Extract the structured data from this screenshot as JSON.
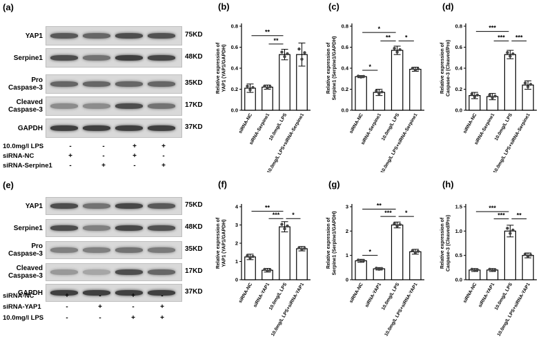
{
  "blots": [
    {
      "letter": "(a)",
      "rows": [
        "YAP1",
        "Serpine1",
        "Pro\nCaspase-3",
        "Cleaved\nCaspase-3",
        "GAPDH"
      ],
      "kd": [
        "75KD",
        "48KD",
        "35KD",
        "17KD",
        "37KD"
      ],
      "conditions": [
        {
          "label": "10.0mg/l LPS",
          "signs": [
            "-",
            "-",
            "+",
            "+"
          ]
        },
        {
          "label": "siRNA-NC",
          "signs": [
            "+",
            "-",
            "+",
            "-"
          ]
        },
        {
          "label": "siRNA-Serpine1",
          "signs": [
            "-",
            "+",
            "-",
            "+"
          ]
        }
      ]
    },
    {
      "letter": "(e)",
      "rows": [
        "YAP1",
        "Serpine1",
        "Pro\nCaspase-3",
        "Cleaved\nCaspase-3",
        "GAPDH"
      ],
      "kd": [
        "75KD",
        "48KD",
        "35KD",
        "17KD",
        "37KD"
      ],
      "conditions": [
        {
          "label": "siRNA-NC",
          "signs": [
            "+",
            "-",
            "+",
            "-"
          ]
        },
        {
          "label": "siRNA-YAP1",
          "signs": [
            "-",
            "+",
            "-",
            "+"
          ]
        },
        {
          "label": "10.0mg/l LPS",
          "signs": [
            "-",
            "-",
            "+",
            "+"
          ]
        }
      ]
    }
  ],
  "chart_data": [
    {
      "id": "b",
      "letter": "(b)",
      "type": "bar",
      "ylabel": "Relative expression of\nYAP1 (YAP1/GAPDH)",
      "categories": [
        "siRNA-NC",
        "siRNA-Serpine1",
        "10.0mg/L LPS",
        "10.0mg/L LPS+siRNA-Serpine1"
      ],
      "values": [
        0.21,
        0.22,
        0.53,
        0.53
      ],
      "errors": [
        0.04,
        0.02,
        0.05,
        0.11
      ],
      "ylim": [
        0,
        0.8
      ],
      "yticks": [
        0.0,
        0.2,
        0.4,
        0.6,
        0.8
      ],
      "tick_decimals": 1,
      "sig": [
        {
          "from": 0,
          "to": 2,
          "label": "**",
          "y": 0.71
        },
        {
          "from": 1,
          "to": 2,
          "label": "**",
          "y": 0.63
        }
      ]
    },
    {
      "id": "c",
      "letter": "(c)",
      "type": "bar",
      "ylabel": "Relative expression of\nSerpine1 (Serpine1/GAPDH)",
      "categories": [
        "siRNA-NC",
        "siRNA-Serpine1",
        "10.0mg/L LPS",
        "10.0mg/L LPS+siRNA-Serpine1"
      ],
      "values": [
        0.32,
        0.17,
        0.57,
        0.39
      ],
      "errors": [
        0.01,
        0.03,
        0.04,
        0.02
      ],
      "ylim": [
        0,
        0.8
      ],
      "yticks": [
        0.0,
        0.2,
        0.4,
        0.6,
        0.8
      ],
      "tick_decimals": 1,
      "sig": [
        {
          "from": 0,
          "to": 2,
          "label": "*",
          "y": 0.74
        },
        {
          "from": 0,
          "to": 1,
          "label": "*",
          "y": 0.38
        },
        {
          "from": 1,
          "to": 2,
          "label": "**",
          "y": 0.66
        },
        {
          "from": 2,
          "to": 3,
          "label": "*",
          "y": 0.66
        }
      ]
    },
    {
      "id": "d",
      "letter": "(d)",
      "type": "bar",
      "ylabel": "Relative expression of\nCaspase-3 (Cleaved/Pro)",
      "categories": [
        "siRNA-NC",
        "siRNA-Serpine1",
        "10.0mg/L LPS",
        "10.0mg/L LPS+siRNA-Serpine1"
      ],
      "values": [
        0.14,
        0.13,
        0.53,
        0.24
      ],
      "errors": [
        0.03,
        0.03,
        0.04,
        0.04
      ],
      "ylim": [
        0,
        0.8
      ],
      "yticks": [
        0.0,
        0.2,
        0.4,
        0.6,
        0.8
      ],
      "tick_decimals": 1,
      "sig": [
        {
          "from": 0,
          "to": 2,
          "label": "***",
          "y": 0.75
        },
        {
          "from": 1,
          "to": 2,
          "label": "***",
          "y": 0.66
        },
        {
          "from": 2,
          "to": 3,
          "label": "***",
          "y": 0.66
        }
      ]
    },
    {
      "id": "f",
      "letter": "(f)",
      "type": "bar",
      "ylabel": "Relative expression of\nYAP1 (YAP1/GAPDH)",
      "categories": [
        "siRNA-NC",
        "siRNA-YAP1",
        "10.0mg/L LPS",
        "10.0mg/L LPS+siRNA-YAP1"
      ],
      "values": [
        1.25,
        0.52,
        2.9,
        1.7
      ],
      "errors": [
        0.15,
        0.1,
        0.28,
        0.12
      ],
      "ylim": [
        0,
        4
      ],
      "yticks": [
        0,
        1,
        2,
        3,
        4
      ],
      "tick_decimals": 0,
      "sig": [
        {
          "from": 0,
          "to": 2,
          "label": "**",
          "y": 3.75
        },
        {
          "from": 1,
          "to": 2,
          "label": "***",
          "y": 3.35
        },
        {
          "from": 2,
          "to": 3,
          "label": "*",
          "y": 3.35
        }
      ]
    },
    {
      "id": "g",
      "letter": "(g)",
      "type": "bar",
      "ylabel": "Relative expression of\nSerpine1 (Serpine1/GAPDH)",
      "categories": [
        "siRNA-NC",
        "siRNA-YAP1",
        "10.0mg/L LPS",
        "10.0mg/L LPS+siRNA-YAP1"
      ],
      "values": [
        0.78,
        0.45,
        2.25,
        1.15
      ],
      "errors": [
        0.06,
        0.05,
        0.12,
        0.1
      ],
      "ylim": [
        0,
        3
      ],
      "yticks": [
        0,
        1,
        2,
        3
      ],
      "tick_decimals": 0,
      "sig": [
        {
          "from": 0,
          "to": 2,
          "label": "**",
          "y": 2.9
        },
        {
          "from": 0,
          "to": 1,
          "label": "*",
          "y": 1.0
        },
        {
          "from": 1,
          "to": 2,
          "label": "***",
          "y": 2.6
        },
        {
          "from": 2,
          "to": 3,
          "label": "*",
          "y": 2.6
        }
      ]
    },
    {
      "id": "h",
      "letter": "(h)",
      "type": "bar",
      "ylabel": "Relative expression of\nCaspase-3 (Cleaved/Pro)",
      "categories": [
        "siRNA-NC",
        "siRNA-YAP1",
        "10.0mg/L LPS",
        "10.0mg/L LPS+siRNA-YAP1"
      ],
      "values": [
        0.2,
        0.2,
        1.0,
        0.5
      ],
      "errors": [
        0.03,
        0.03,
        0.12,
        0.05
      ],
      "ylim": [
        0,
        1.5
      ],
      "yticks": [
        0.0,
        0.5,
        1.0,
        1.5
      ],
      "tick_decimals": 1,
      "sig": [
        {
          "from": 0,
          "to": 2,
          "label": "***",
          "y": 1.4
        },
        {
          "from": 1,
          "to": 2,
          "label": "***",
          "y": 1.25
        },
        {
          "from": 2,
          "to": 3,
          "label": "**",
          "y": 1.25
        }
      ]
    }
  ]
}
